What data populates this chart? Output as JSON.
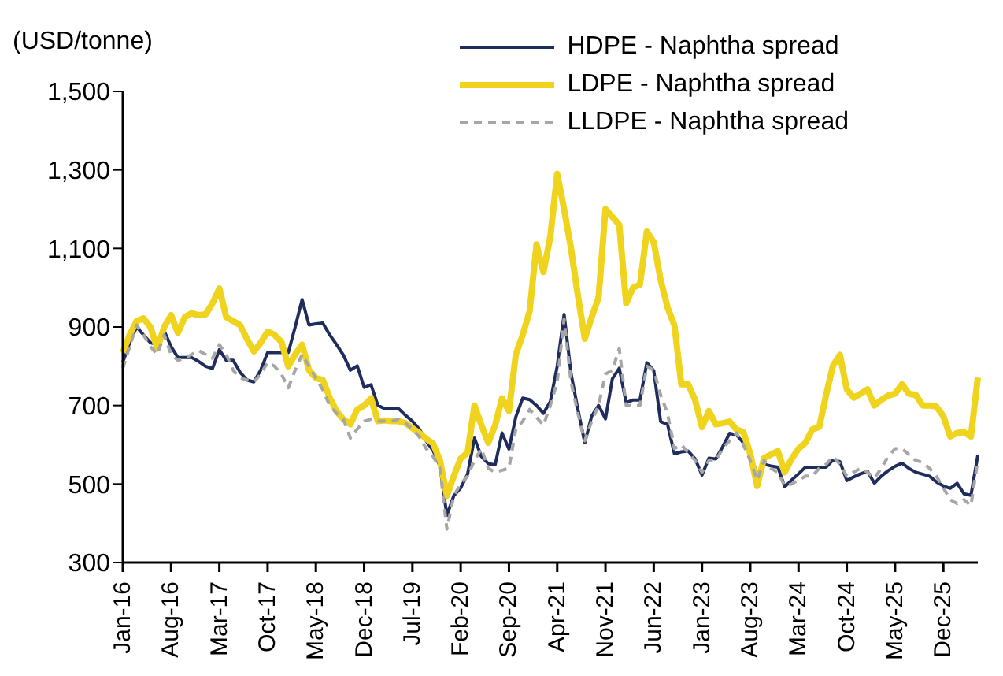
{
  "chart_data": {
    "type": "line",
    "ylabel": "(USD/tonne)",
    "categories": [
      "Jan-16",
      null,
      null,
      null,
      null,
      null,
      null,
      "Aug-16",
      null,
      null,
      null,
      null,
      null,
      null,
      "Mar-17",
      null,
      null,
      null,
      null,
      null,
      null,
      "Oct-17",
      null,
      null,
      null,
      null,
      null,
      null,
      "May-18",
      null,
      null,
      null,
      null,
      null,
      null,
      "Dec-18",
      null,
      null,
      null,
      null,
      null,
      null,
      "Jul-19",
      null,
      null,
      null,
      null,
      null,
      null,
      "Feb-20",
      null,
      null,
      null,
      null,
      null,
      null,
      "Sep-20",
      null,
      null,
      null,
      null,
      null,
      null,
      "Apr-21",
      null,
      null,
      null,
      null,
      null,
      null,
      "Nov-21",
      null,
      null,
      null,
      null,
      null,
      null,
      "Jun-22",
      null,
      null,
      null,
      null,
      null,
      null,
      "Jan-23",
      null,
      null,
      null,
      null,
      null,
      null,
      "Aug-23",
      null,
      null,
      null,
      null,
      null,
      null,
      "Mar-24",
      null,
      null,
      null,
      null,
      null,
      null,
      "Oct-24",
      null,
      null,
      null,
      null,
      null,
      null,
      "May-25",
      null,
      null,
      null,
      null,
      null,
      null,
      "Dec-25",
      null,
      null,
      null,
      null,
      null
    ],
    "series": [
      {
        "name": "HDPE - Naphtha spread",
        "color": "#1f2d5c",
        "line_style": "solid",
        "values": [
          810,
          860,
          900,
          880,
          860,
          856,
          890,
          850,
          822,
          822,
          822,
          812,
          800,
          794,
          842,
          815,
          815,
          785,
          765,
          760,
          790,
          835,
          835,
          835,
          835,
          900,
          970,
          905,
          908,
          910,
          880,
          855,
          828,
          790,
          801,
          746,
          753,
          700,
          692,
          692,
          692,
          675,
          660,
          640,
          610,
          585,
          545,
          420,
          470,
          490,
          525,
          617,
          570,
          552,
          549,
          630,
          589,
          671,
          719,
          715,
          700,
          680,
          710,
          800,
          932,
          782,
          690,
          605,
          673,
          700,
          666,
          768,
          795,
          707,
          714,
          714,
          809,
          789,
          659,
          652,
          577,
          582,
          584,
          564,
          523,
          566,
          564,
          595,
          629,
          625,
          605,
          577,
          523,
          550,
          546,
          543,
          493,
          510,
          526,
          543,
          543,
          543,
          543,
          561,
          557,
          509,
          518,
          526,
          532,
          502,
          520,
          534,
          545,
          553,
          540,
          530,
          525,
          520,
          505,
          495,
          489,
          502,
          475,
          471,
          573
        ]
      },
      {
        "name": "LDPE - Naphtha spread",
        "color": "#f0d31c",
        "line_style": "solid",
        "values": [
          835,
          880,
          915,
          922,
          900,
          845,
          900,
          930,
          885,
          925,
          935,
          930,
          932,
          960,
          998,
          925,
          915,
          905,
          870,
          838,
          860,
          888,
          880,
          862,
          800,
          830,
          855,
          790,
          770,
          765,
          720,
          685,
          665,
          652,
          690,
          700,
          718,
          660,
          662,
          660,
          660,
          655,
          642,
          630,
          615,
          603,
          560,
          470,
          520,
          565,
          580,
          700,
          650,
          605,
          650,
          718,
          686,
          830,
          880,
          940,
          1110,
          1040,
          1130,
          1290,
          1200,
          1100,
          980,
          870,
          925,
          975,
          1200,
          1180,
          1160,
          960,
          1000,
          1008,
          1143,
          1116,
          1020,
          950,
          904,
          754,
          754,
          714,
          645,
          686,
          652,
          655,
          659,
          639,
          632,
          577,
          495,
          566,
          575,
          584,
          530,
          564,
          590,
          605,
          639,
          645,
          727,
          802,
          829,
          741,
          720,
          730,
          741,
          700,
          714,
          725,
          730,
          754,
          730,
          727,
          700,
          700,
          697,
          673,
          621,
          630,
          632,
          621,
          771
        ]
      },
      {
        "name": "LLDPE - Naphtha spread",
        "color": "#a6a6a6",
        "line_style": "dashed",
        "values": [
          795,
          850,
          905,
          880,
          850,
          830,
          880,
          830,
          815,
          820,
          830,
          840,
          830,
          820,
          855,
          830,
          790,
          770,
          765,
          760,
          780,
          810,
          800,
          780,
          745,
          790,
          830,
          800,
          770,
          740,
          700,
          680,
          665,
          617,
          640,
          660,
          665,
          660,
          660,
          660,
          665,
          655,
          640,
          620,
          590,
          570,
          540,
          385,
          470,
          500,
          520,
          560,
          590,
          540,
          530,
          535,
          540,
          640,
          660,
          690,
          670,
          650,
          700,
          760,
          920,
          760,
          680,
          610,
          660,
          700,
          780,
          790,
          845,
          700,
          700,
          700,
          800,
          790,
          727,
          680,
          590,
          600,
          580,
          560,
          530,
          560,
          560,
          590,
          610,
          630,
          600,
          560,
          510,
          560,
          540,
          530,
          495,
          500,
          510,
          520,
          520,
          540,
          550,
          570,
          550,
          520,
          530,
          540,
          530,
          515,
          540,
          570,
          590,
          590,
          575,
          560,
          555,
          540,
          520,
          490,
          460,
          450,
          460,
          445,
          560
        ]
      }
    ],
    "ylim": [
      300,
      1500
    ],
    "yticks": [
      300,
      500,
      700,
      900,
      {
        "value": 1100,
        "label": "1,100"
      },
      {
        "value": 1300,
        "label": "1,300"
      },
      {
        "value": 1500,
        "label": "1,500"
      }
    ],
    "grid": false,
    "legend": "top right",
    "marker": "none"
  }
}
